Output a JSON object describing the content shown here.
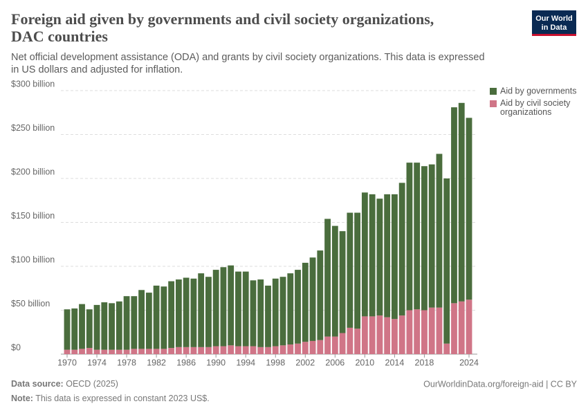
{
  "chart_data": {
    "type": "stacked-bar",
    "title": "Foreign aid given by governments and civil society organizations, DAC countries",
    "subtitle": "Net official development assistance (ODA) and grants by civil society organizations. This data is expressed in US dollars and adjusted for inflation.",
    "x": [
      1970,
      1971,
      1972,
      1973,
      1974,
      1975,
      1976,
      1977,
      1978,
      1979,
      1980,
      1981,
      1982,
      1983,
      1984,
      1985,
      1986,
      1987,
      1988,
      1989,
      1990,
      1991,
      1992,
      1993,
      1994,
      1995,
      1996,
      1997,
      1998,
      1999,
      2000,
      2001,
      2002,
      2003,
      2004,
      2005,
      2006,
      2007,
      2008,
      2009,
      2010,
      2011,
      2012,
      2013,
      2014,
      2015,
      2016,
      2017,
      2018,
      2019,
      2020,
      2021,
      2022,
      2023,
      2024
    ],
    "xticks": [
      1970,
      1974,
      1978,
      1982,
      1986,
      1990,
      1994,
      1998,
      2002,
      2006,
      2010,
      2014,
      2018,
      2024
    ],
    "ylim": [
      0,
      300
    ],
    "yticks": [
      {
        "value": 0,
        "label": "$0"
      },
      {
        "value": 50,
        "label": "$50 billion"
      },
      {
        "value": 100,
        "label": "$100 billion"
      },
      {
        "value": 150,
        "label": "$150 billion"
      },
      {
        "value": 200,
        "label": "$200 billion"
      },
      {
        "value": 250,
        "label": "$250 billion"
      },
      {
        "value": 300,
        "label": "$300 billion"
      }
    ],
    "grid": true,
    "legend": "right",
    "series": [
      {
        "name": "Aid by civil society organizations",
        "color": "#d07587",
        "values": [
          5,
          5,
          6,
          7,
          5,
          5,
          5,
          5,
          5,
          6,
          6,
          6,
          6,
          6,
          7,
          8,
          8,
          8,
          8,
          8,
          9,
          9,
          10,
          9,
          9,
          9,
          8,
          8,
          9,
          10,
          11,
          12,
          14,
          15,
          16,
          20,
          20,
          24,
          30,
          29,
          43,
          43,
          44,
          42,
          40,
          44,
          50,
          51,
          50,
          53,
          53,
          12,
          58,
          60,
          62
        ]
      },
      {
        "name": "Aid by governments",
        "color": "#4a6d3d",
        "values": [
          46,
          47,
          51,
          44,
          51,
          54,
          53,
          55,
          61,
          60,
          67,
          64,
          72,
          71,
          76,
          77,
          79,
          78,
          84,
          80,
          87,
          90,
          91,
          85,
          85,
          75,
          77,
          70,
          77,
          78,
          81,
          84,
          90,
          95,
          102,
          134,
          126,
          116,
          131,
          132,
          141,
          139,
          133,
          140,
          142,
          151,
          168,
          167,
          164,
          163,
          175,
          188,
          223,
          226,
          207
        ]
      }
    ],
    "logo": [
      "Our World",
      "in Data"
    ],
    "source_label": "Data source:",
    "source": "OECD (2025)",
    "url": "OurWorldinData.org/foreign-aid | CC BY",
    "note_label": "Note:",
    "note": "This data is expressed in constant 2023 US$."
  }
}
